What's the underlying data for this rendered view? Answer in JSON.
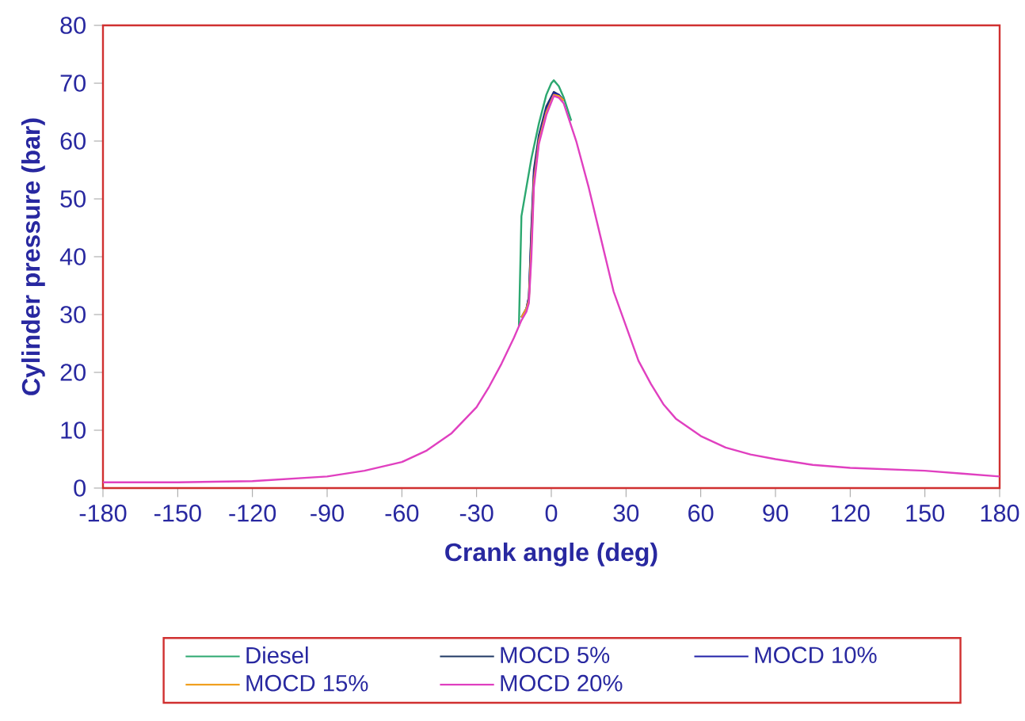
{
  "chart_data": {
    "type": "line",
    "xlabel": "Crank angle (deg)",
    "ylabel": "Cylinder pressure (bar)",
    "xlim": [
      -180,
      180
    ],
    "ylim": [
      0,
      80
    ],
    "xticks": [
      -180,
      -150,
      -120,
      -90,
      -60,
      -30,
      0,
      30,
      60,
      90,
      120,
      150,
      180
    ],
    "yticks": [
      0,
      10,
      20,
      30,
      40,
      50,
      60,
      70,
      80
    ],
    "grid": false,
    "legend": "bottom",
    "marker": "none",
    "line_style": "solid",
    "series": [
      {
        "name": "Diesel",
        "color": "#2ca870",
        "x": [
          -13,
          -12,
          -10,
          -8,
          -5,
          -2,
          0,
          1,
          3,
          5,
          8
        ],
        "values": [
          28,
          47,
          52,
          57,
          63,
          68,
          70,
          70.5,
          69.5,
          67.5,
          63.5
        ]
      },
      {
        "name": "MOCD 5%",
        "color": "#1f3864",
        "x": [
          -12,
          -10,
          -9,
          -8,
          -7,
          -5,
          -2,
          1,
          3,
          5
        ],
        "values": [
          29.5,
          31,
          33,
          45,
          55,
          61,
          66,
          68.5,
          68,
          67
        ]
      },
      {
        "name": "MOCD 10%",
        "color": "#2020a8",
        "x": [
          -12,
          -10,
          -9,
          -8,
          -7,
          -5,
          -2,
          1,
          3,
          5
        ],
        "values": [
          29.5,
          31,
          33,
          44,
          54,
          60.5,
          65.5,
          68.3,
          68,
          67
        ]
      },
      {
        "name": "MOCD 15%",
        "color": "#f0a020",
        "x": [
          -12,
          -10,
          -9,
          -8,
          -7,
          -5,
          -2,
          1,
          3,
          5
        ],
        "values": [
          29.5,
          31,
          32.5,
          42,
          53,
          60,
          65,
          68,
          67.8,
          67
        ]
      },
      {
        "name": "MOCD 20%",
        "color": "#e040c0",
        "x": [
          -180,
          -150,
          -120,
          -90,
          -75,
          -60,
          -50,
          -40,
          -30,
          -25,
          -20,
          -15,
          -13,
          -12,
          -10,
          -9,
          -8,
          -7,
          -5,
          -2,
          1,
          3,
          5,
          10,
          15,
          20,
          25,
          30,
          35,
          40,
          45,
          50,
          60,
          70,
          80,
          90,
          105,
          120,
          150,
          165,
          180
        ],
        "values": [
          1,
          1,
          1.2,
          2,
          3,
          4.5,
          6.5,
          9.5,
          14,
          17.5,
          21.5,
          26,
          28,
          29,
          30.5,
          32,
          40,
          52,
          59.5,
          64.5,
          67.8,
          67.5,
          66.5,
          60,
          52,
          43,
          34,
          28,
          22,
          18,
          14.5,
          12,
          9,
          7,
          5.8,
          5,
          4,
          3.5,
          3,
          2.5,
          2
        ]
      }
    ]
  }
}
